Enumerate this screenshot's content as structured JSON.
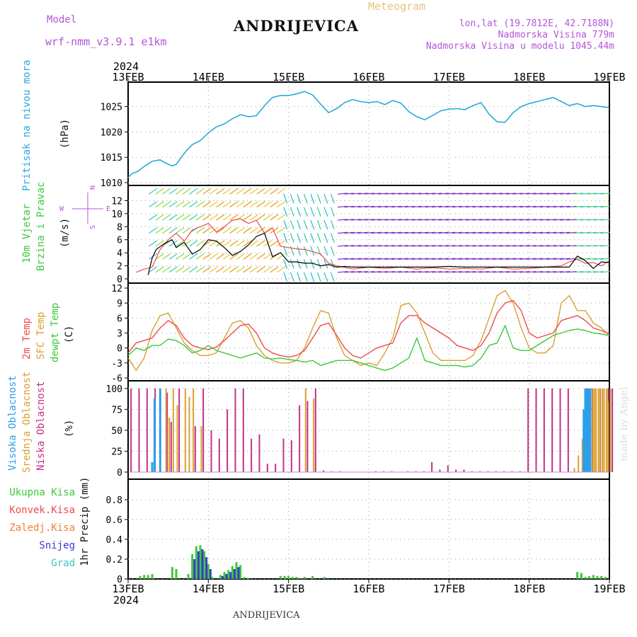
{
  "header": {
    "title": "ANDRIJEVICA",
    "subtitle": "Meteogram",
    "model_label": "Model",
    "model_name": "wrf-nmm_v3.9.1 e1km",
    "coords": "lon,lat (19.7812E, 42.7188N)",
    "elevation": "Nadmorska Visina 779m",
    "model_elevation": "Nadmorska Visina u modelu 1045.44m",
    "footer_title": "ANDRIJEVICA",
    "watermark": "made by Angel"
  },
  "colors": {
    "pressure": "#2aa8e0",
    "temp2m": "#ef4b4b",
    "sfctemp": "#d9a030",
    "dewpt": "#3cc83c",
    "wind_speed": "#000000",
    "wind_gust": "#ef4b4b",
    "cloud_high": "#2aa0e8",
    "cloud_mid": "#d9a030",
    "cloud_low": "#c2308a",
    "precip_total": "#3cc83c",
    "precip_conv": "#ef4b4b",
    "precip_frz": "#f08030",
    "precip_snow": "#3a3ad0",
    "precip_grad": "#30c8c8",
    "header_purple": "#b455d8",
    "header_gold": "#e8c080"
  },
  "time_axis": {
    "year": "2024",
    "ticks": [
      "13FEB",
      "14FEB",
      "15FEB",
      "16FEB",
      "17FEB",
      "18FEB",
      "19FEB"
    ]
  },
  "panels": {
    "pressure": {
      "label": "Pritisak na nivou mora",
      "unit": "(hPa)"
    },
    "wind": {
      "label1": "10m Vjetar",
      "label2": "Brzina i Pravac",
      "unit": "(m/s)",
      "compass_n": "N",
      "compass_s": "S",
      "compass_e": "E",
      "compass_w": "W"
    },
    "temp": {
      "label1": "2m Temp",
      "label2": "SFC Temp",
      "label3": "dewpt Temp",
      "unit": "(C)"
    },
    "cloud": {
      "label1": "Visoka Oblacnost",
      "label2": "Srednja Oblacnost",
      "label3": "Niska Oblacnost",
      "unit": "(%)"
    },
    "precip": {
      "legend": [
        "Ukupna Kisa",
        "Konvek.Kisa",
        "Zaledj.Kisa",
        "Snijeg",
        "Grad"
      ],
      "unit": "1hr Precip (mm)"
    }
  },
  "chart_data": [
    {
      "type": "line",
      "title": "Pritisak na nivou mora",
      "ylabel": "(hPa)",
      "ylim": [
        1010,
        1029
      ],
      "yticks": [
        1010,
        1015,
        1020,
        1025
      ],
      "x_days": [
        0,
        0.05,
        0.12,
        0.2,
        0.3,
        0.4,
        0.45,
        0.55,
        0.6,
        0.7,
        0.8,
        0.9,
        1.0,
        1.1,
        1.2,
        1.3,
        1.4,
        1.5,
        1.6,
        1.7,
        1.8,
        1.9,
        2.0,
        2.1,
        2.2,
        2.3,
        2.4,
        2.5,
        2.6,
        2.7,
        2.8,
        2.9,
        3.0,
        3.1,
        3.2,
        3.3,
        3.4,
        3.5,
        3.6,
        3.7,
        3.8,
        3.9,
        4.0,
        4.1,
        4.2,
        4.3,
        4.4,
        4.5,
        4.6,
        4.7,
        4.8,
        4.9,
        5.0,
        5.1,
        5.2,
        5.3,
        5.4,
        5.5,
        5.6,
        5.7,
        5.8,
        5.9,
        6.0
      ],
      "values": [
        1011,
        1011.8,
        1012.2,
        1013.2,
        1014.2,
        1014.5,
        1014.0,
        1013.3,
        1013.6,
        1015.8,
        1017.5,
        1018.3,
        1019.8,
        1021.0,
        1021.6,
        1022.6,
        1023.4,
        1023.0,
        1023.2,
        1025.2,
        1026.8,
        1027.2,
        1027.2,
        1027.5,
        1028.0,
        1027.3,
        1025.5,
        1023.8,
        1024.6,
        1025.8,
        1026.4,
        1026.0,
        1025.8,
        1026.0,
        1025.4,
        1026.2,
        1025.7,
        1024.0,
        1023.0,
        1022.4,
        1023.3,
        1024.2,
        1024.5,
        1024.6,
        1024.4,
        1025.2,
        1025.8,
        1023.5,
        1022.0,
        1021.9,
        1023.8,
        1025.0,
        1025.6,
        1026.0,
        1026.4,
        1026.8,
        1026.0,
        1025.2,
        1025.6,
        1025.0,
        1025.2,
        1025.0,
        1024.8
      ]
    },
    {
      "type": "line",
      "title": "10m Vjetar",
      "ylabel": "(m/s)",
      "ylim": [
        0,
        14
      ],
      "yticks": [
        0,
        2,
        4,
        6,
        8,
        10,
        12
      ],
      "series": [
        {
          "name": "Brzina",
          "x_days": [
            0.25,
            0.3,
            0.35,
            0.45,
            0.55,
            0.6,
            0.7,
            0.8,
            0.9,
            1.0,
            1.1,
            1.2,
            1.3,
            1.4,
            1.5,
            1.6,
            1.7,
            1.8,
            1.9,
            2.0,
            2.1,
            2.2,
            2.3,
            2.4,
            2.5,
            2.6,
            2.7,
            2.8,
            2.9,
            3.0,
            3.2,
            3.4,
            3.6,
            3.8,
            4.0,
            4.2,
            4.4,
            4.6,
            4.8,
            5.0,
            5.2,
            5.4,
            5.5,
            5.6,
            5.7,
            5.8,
            5.9,
            6.0
          ],
          "values": [
            0.6,
            3.2,
            4.5,
            5.4,
            6.0,
            4.8,
            5.6,
            3.8,
            4.5,
            6.0,
            5.8,
            4.8,
            3.6,
            4.2,
            5.2,
            6.5,
            7.0,
            3.4,
            4.0,
            2.6,
            2.6,
            2.4,
            2.4,
            2.0,
            2.2,
            1.8,
            1.9,
            1.8,
            1.8,
            1.8,
            1.8,
            1.8,
            1.8,
            1.8,
            1.9,
            1.8,
            1.8,
            1.8,
            1.8,
            1.8,
            1.8,
            1.8,
            1.8,
            3.5,
            2.8,
            1.6,
            2.6,
            2.5
          ]
        },
        {
          "name": "Udari",
          "x_days": [
            0.1,
            0.2,
            0.3,
            0.4,
            0.5,
            0.6,
            0.7,
            0.8,
            0.9,
            1.0,
            1.1,
            1.2,
            1.3,
            1.4,
            1.5,
            1.6,
            1.7,
            1.8,
            1.9,
            2.0,
            2.1,
            2.2,
            2.3,
            2.4,
            2.5,
            2.6,
            2.8,
            3.0,
            3.2,
            3.4,
            3.6,
            3.8,
            4.0,
            4.2,
            4.4,
            4.6,
            4.8,
            5.0,
            5.2,
            5.4,
            5.5,
            5.6,
            5.7,
            5.8,
            5.9,
            6.0
          ],
          "values": [
            1.0,
            1.5,
            1.8,
            4.5,
            6.0,
            7.0,
            5.8,
            7.5,
            8.0,
            8.5,
            7.2,
            8.0,
            9.0,
            9.2,
            8.5,
            9.0,
            7.0,
            7.8,
            5.0,
            4.8,
            4.6,
            4.5,
            4.2,
            3.8,
            2.4,
            2.0,
            1.5,
            1.8,
            1.6,
            1.8,
            1.5,
            1.7,
            1.5,
            1.6,
            1.5,
            1.8,
            1.5,
            1.6,
            1.8,
            2.0,
            2.6,
            3.0,
            2.4,
            2.5,
            2.0,
            2.8
          ]
        }
      ]
    },
    {
      "type": "line",
      "title": "2m Temp / SFC Temp / dewpt Temp",
      "ylabel": "(C)",
      "ylim": [
        -6,
        12
      ],
      "yticks": [
        -6,
        -3,
        0,
        3,
        6,
        9,
        12
      ],
      "x_days": [
        0,
        0.1,
        0.2,
        0.3,
        0.4,
        0.5,
        0.6,
        0.7,
        0.8,
        0.9,
        1.0,
        1.1,
        1.2,
        1.3,
        1.4,
        1.5,
        1.6,
        1.7,
        1.8,
        1.9,
        2.0,
        2.1,
        2.2,
        2.3,
        2.4,
        2.5,
        2.6,
        2.7,
        2.8,
        2.9,
        3.0,
        3.1,
        3.2,
        3.3,
        3.4,
        3.5,
        3.6,
        3.7,
        3.8,
        3.9,
        4.0,
        4.1,
        4.2,
        4.3,
        4.4,
        4.5,
        4.6,
        4.7,
        4.8,
        4.9,
        5.0,
        5.1,
        5.2,
        5.3,
        5.4,
        5.5,
        5.6,
        5.7,
        5.8,
        5.9,
        6.0
      ],
      "series": [
        {
          "name": "2m Temp",
          "values": [
            -1.0,
            1.0,
            1.5,
            2.0,
            4.0,
            5.5,
            4.5,
            2.0,
            0.5,
            0.0,
            -0.3,
            0.2,
            1.5,
            3.0,
            4.5,
            4.8,
            3.0,
            0.0,
            -1.0,
            -1.5,
            -1.8,
            -1.5,
            -0.5,
            2.0,
            4.5,
            5.0,
            2.5,
            0.0,
            -1.5,
            -2.0,
            -1.0,
            0.0,
            0.5,
            1.0,
            5.0,
            6.5,
            6.5,
            5.0,
            4.0,
            3.0,
            2.0,
            0.5,
            0.0,
            -0.5,
            0.5,
            3.0,
            7.0,
            9.0,
            9.5,
            7.5,
            3.0,
            2.0,
            2.5,
            3.0,
            5.5,
            6.0,
            6.5,
            5.5,
            4.0,
            3.5,
            2.8
          ]
        },
        {
          "name": "SFC Temp",
          "values": [
            -2.0,
            -4.5,
            -2.0,
            3.5,
            6.5,
            7.0,
            4.0,
            1.0,
            -0.5,
            -1.5,
            -1.5,
            -1.0,
            2.0,
            5.0,
            5.5,
            4.0,
            0.5,
            -1.5,
            -2.5,
            -3.0,
            -3.0,
            -2.5,
            0.0,
            4.0,
            7.5,
            7.0,
            2.0,
            -1.5,
            -2.5,
            -3.5,
            -3.0,
            -3.5,
            -1.0,
            2.0,
            8.5,
            9.0,
            7.0,
            3.0,
            -1.0,
            -2.5,
            -2.5,
            -2.5,
            -2.5,
            -1.5,
            1.5,
            6.0,
            10.5,
            11.5,
            9.0,
            4.0,
            0.0,
            -1.0,
            -1.0,
            0.5,
            9.0,
            10.5,
            7.5,
            7.5,
            5.0,
            4.0,
            2.5
          ]
        },
        {
          "name": "dewpt Temp",
          "values": [
            -1.5,
            0.0,
            -0.5,
            0.5,
            0.5,
            1.8,
            1.5,
            0.5,
            -1.0,
            -0.5,
            0.5,
            -0.5,
            -1.0,
            -1.5,
            -2.0,
            -1.5,
            -1.0,
            -2.0,
            -2.2,
            -2.0,
            -2.3,
            -2.5,
            -2.8,
            -2.5,
            -3.5,
            -3.0,
            -2.5,
            -2.5,
            -2.5,
            -3.0,
            -3.5,
            -4.0,
            -4.5,
            -4.0,
            -3.0,
            -2.0,
            2.0,
            -2.5,
            -3.0,
            -3.5,
            -3.5,
            -3.5,
            -3.8,
            -3.5,
            -2.0,
            0.5,
            1.0,
            4.5,
            0.0,
            -0.5,
            -0.5,
            0.5,
            1.5,
            2.5,
            3.0,
            3.5,
            3.8,
            3.5,
            3.0,
            2.8,
            2.5
          ]
        }
      ]
    },
    {
      "type": "bar",
      "title": "Oblacnost",
      "ylabel": "(%)",
      "ylim": [
        0,
        100
      ],
      "yticks": [
        0,
        25,
        50,
        75,
        100
      ],
      "series": [
        {
          "name": "Visoka Oblacnost",
          "x_days": [
            0.3,
            0.33,
            0.4,
            5.68,
            5.7,
            5.72,
            5.74,
            5.76
          ],
          "values": [
            12,
            88,
            100,
            75,
            100,
            100,
            100,
            100
          ]
        },
        {
          "name": "Srednja Oblacnost",
          "x_days": [
            0.46,
            0.5,
            0.55,
            0.6,
            0.7,
            0.75,
            0.8,
            0.9,
            2.2,
            2.3,
            5.55,
            5.6,
            5.65,
            5.8,
            5.85,
            5.9,
            5.95,
            6.0,
            5.78,
            5.82,
            5.87,
            5.92,
            5.97
          ],
          "values": [
            100,
            65,
            100,
            80,
            100,
            90,
            100,
            55,
            100,
            88,
            5,
            20,
            40,
            100,
            100,
            100,
            100,
            100,
            100,
            100,
            100,
            100,
            85
          ]
        },
        {
          "name": "Niska Oblacnost",
          "x_days": [
            0.05,
            0.15,
            0.25,
            0.35,
            0.5,
            0.55,
            0.65,
            0.85,
            0.95,
            1.05,
            1.15,
            1.25,
            1.35,
            1.45,
            1.55,
            1.65,
            1.75,
            1.85,
            1.95,
            2.05,
            2.15,
            2.25,
            2.35,
            2.45,
            2.55,
            2.65,
            3.1,
            3.2,
            3.3,
            3.5,
            3.6,
            3.7,
            3.8,
            3.9,
            4.0,
            4.1,
            4.2,
            4.3,
            4.4,
            4.5,
            4.6,
            4.7,
            4.8,
            4.9,
            5.0,
            5.1,
            5.2,
            5.3,
            5.4,
            5.5,
            5.8,
            5.9,
            6.0,
            6.05
          ],
          "values": [
            100,
            100,
            100,
            100,
            95,
            60,
            100,
            55,
            100,
            50,
            40,
            75,
            100,
            100,
            40,
            45,
            10,
            10,
            40,
            38,
            80,
            85,
            100,
            2,
            1,
            1,
            1,
            1,
            1,
            1,
            1,
            1,
            12,
            3,
            8,
            3,
            3,
            1,
            1,
            1,
            1,
            1,
            1,
            1,
            100,
            100,
            100,
            100,
            100,
            100,
            100,
            100,
            100,
            100
          ]
        }
      ]
    },
    {
      "type": "bar",
      "title": "1hr Precip",
      "ylabel": "1hr Precip (mm)",
      "ylim": [
        0,
        1
      ],
      "yticks": [
        0,
        0.2,
        0.4,
        0.6,
        0.8
      ],
      "series": [
        {
          "name": "Ukupna Kisa",
          "x_days": [
            0.15,
            0.2,
            0.25,
            0.3,
            0.55,
            0.6,
            0.75,
            0.8,
            0.85,
            0.9,
            0.95,
            1.0,
            1.05,
            1.15,
            1.2,
            1.25,
            1.3,
            1.35,
            1.4,
            1.45,
            1.5,
            1.9,
            1.95,
            2.0,
            2.05,
            2.1,
            2.15,
            2.2,
            2.3,
            2.45,
            5.6,
            5.65,
            5.7,
            5.75,
            5.8,
            5.85,
            5.9,
            5.95
          ],
          "values": [
            0.03,
            0.04,
            0.04,
            0.05,
            0.12,
            0.1,
            0.05,
            0.25,
            0.33,
            0.34,
            0.28,
            0.15,
            0.02,
            0.04,
            0.07,
            0.09,
            0.13,
            0.17,
            0.14,
            0.02,
            0.01,
            0.03,
            0.03,
            0.03,
            0.02,
            0.02,
            0.01,
            0.02,
            0.03,
            0.02,
            0.07,
            0.06,
            0.02,
            0.03,
            0.04,
            0.03,
            0.03,
            0.02
          ]
        },
        {
          "name": "Snijeg",
          "x_days": [
            0.8,
            0.85,
            0.9,
            0.95,
            1.0,
            1.15,
            1.2,
            1.25,
            1.3,
            1.35
          ],
          "values": [
            0.2,
            0.28,
            0.3,
            0.22,
            0.1,
            0.03,
            0.05,
            0.07,
            0.1,
            0.12
          ]
        }
      ]
    }
  ]
}
